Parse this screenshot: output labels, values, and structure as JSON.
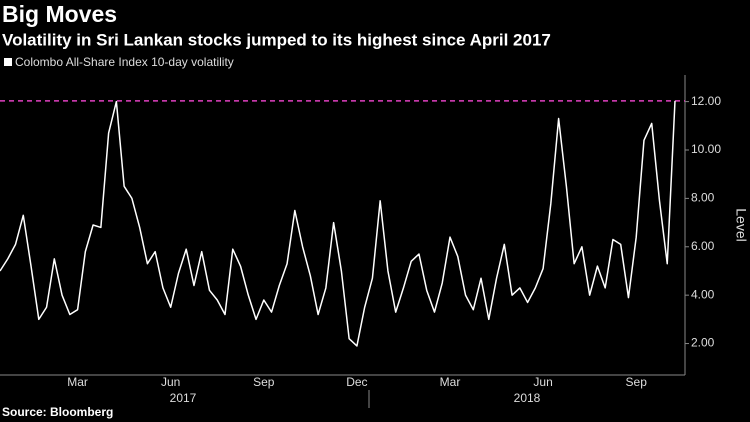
{
  "chart_data": {
    "type": "line",
    "title": "Big Moves",
    "subtitle": "Volatility in Sri Lankan stocks jumped to its highest since April 2017",
    "y_axis_label": "Level",
    "source": "Source: Bloomberg",
    "categories": [
      null,
      null,
      null,
      null,
      null,
      null,
      null,
      null,
      null,
      null,
      "Mar",
      null,
      null,
      null,
      null,
      null,
      null,
      null,
      null,
      null,
      null,
      null,
      "Jun",
      null,
      null,
      null,
      null,
      null,
      null,
      null,
      null,
      null,
      null,
      null,
      "Sep",
      null,
      null,
      null,
      null,
      null,
      null,
      null,
      null,
      null,
      null,
      null,
      "Dec",
      null,
      null,
      null,
      null,
      null,
      null,
      null,
      null,
      null,
      null,
      null,
      "Mar",
      null,
      null,
      null,
      null,
      null,
      null,
      null,
      null,
      null,
      null,
      null,
      "Jun",
      null,
      null,
      null,
      null,
      null,
      null,
      null,
      null,
      null,
      null,
      null,
      "Sep",
      null,
      null,
      null,
      null,
      null
    ],
    "year_labels": [
      "2017",
      "2018"
    ],
    "series": [
      {
        "name": "Colombo All-Share Index 10-day volatility",
        "color": "#ffffff",
        "values": [
          5.0,
          5.5,
          6.1,
          7.3,
          5.2,
          3.0,
          3.5,
          5.5,
          4.0,
          3.2,
          3.4,
          5.8,
          6.9,
          6.8,
          10.7,
          12.0,
          8.5,
          8.0,
          6.8,
          5.3,
          5.8,
          4.3,
          3.5,
          4.9,
          5.9,
          4.4,
          5.8,
          4.2,
          3.8,
          3.2,
          5.9,
          5.2,
          4.0,
          3.0,
          3.8,
          3.3,
          4.4,
          5.3,
          7.5,
          6.0,
          4.8,
          3.2,
          4.3,
          7.0,
          5.0,
          2.2,
          1.9,
          3.5,
          4.7,
          7.9,
          5.0,
          3.3,
          4.3,
          5.4,
          5.7,
          4.2,
          3.3,
          4.5,
          6.4,
          5.6,
          4.0,
          3.4,
          4.7,
          3.0,
          4.7,
          6.1,
          4.0,
          4.3,
          3.7,
          4.3,
          5.1,
          7.8,
          11.3,
          8.5,
          5.3,
          6.0,
          4.0,
          5.2,
          4.3,
          6.3,
          6.1,
          3.9,
          6.4,
          10.4,
          11.1,
          7.9,
          5.3,
          12.03
        ]
      }
    ],
    "reference_line": {
      "value": 12.03,
      "color": "#e040c0"
    },
    "ylim": [
      0.7,
      13.1
    ],
    "yticks": [
      {
        "value": 2,
        "label": "2.00"
      },
      {
        "value": 4,
        "label": "4.00"
      },
      {
        "value": 6,
        "label": "6.00"
      },
      {
        "value": 8,
        "label": "8.00"
      },
      {
        "value": 10,
        "label": "10.00"
      },
      {
        "value": 12,
        "label": "12.00"
      }
    ],
    "legend": "top-left"
  }
}
